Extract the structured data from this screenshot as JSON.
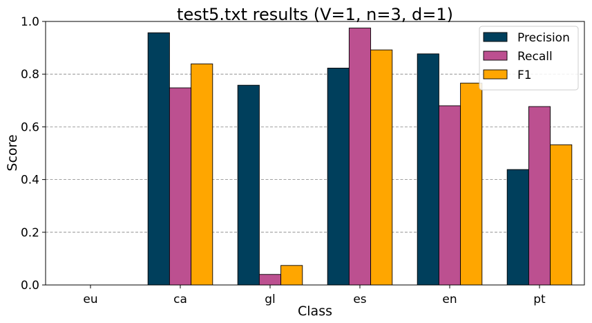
{
  "chart_data": {
    "type": "bar",
    "title": "test5.txt results (V=1, n=3, d=1)",
    "xlabel": "Class",
    "ylabel": "Score",
    "categories": [
      "eu",
      "ca",
      "gl",
      "es",
      "en",
      "pt"
    ],
    "series": [
      {
        "name": "Precision",
        "color": "#003f5c",
        "values": [
          0.0,
          0.957,
          0.758,
          0.823,
          0.877,
          0.438
        ]
      },
      {
        "name": "Recall",
        "color": "#bc5090",
        "values": [
          0.0,
          0.748,
          0.04,
          0.975,
          0.68,
          0.677
        ]
      },
      {
        "name": "F1",
        "color": "#ffa600",
        "values": [
          0.0,
          0.839,
          0.074,
          0.892,
          0.766,
          0.532
        ]
      }
    ],
    "ylim": [
      0,
      1.0
    ],
    "yticks": [
      "0.0",
      "0.2",
      "0.4",
      "0.6",
      "0.8",
      "1.0"
    ],
    "grid": "horizontal-dashed",
    "legend_position": "top-right"
  }
}
